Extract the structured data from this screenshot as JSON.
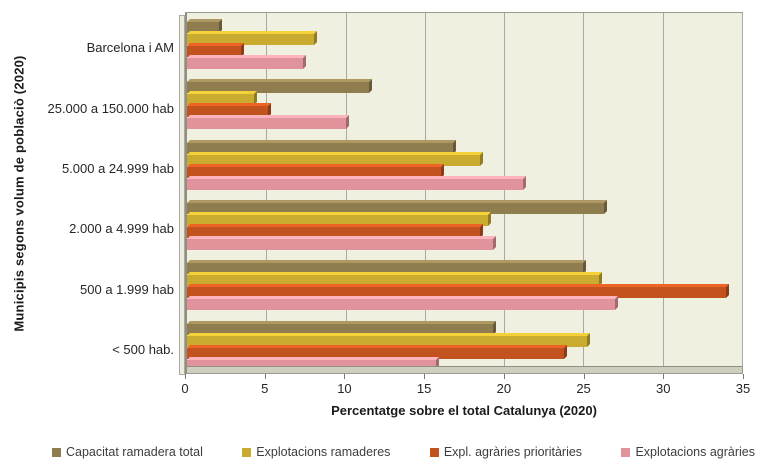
{
  "chart_data": {
    "type": "bar",
    "orientation": "horizontal",
    "xlabel": "Percentatge sobre el total Catalunya  (2020)",
    "ylabel": "Municipis segons volum de poblaciò (2020)",
    "xlim": [
      0,
      35
    ],
    "xticks": [
      0,
      5,
      10,
      15,
      20,
      25,
      30,
      35
    ],
    "grid": true,
    "legend_position": "bottom",
    "categories": [
      "Barcelona i AM",
      "25.000 a 150.000 hab",
      "5.000 a 24.999 hab",
      "2.000 a 4.999 hab",
      "500 a 1.999 hab",
      "< 500 hab."
    ],
    "series": [
      {
        "name": "Capacitat ramadera total",
        "color": "#8F7D50",
        "values": [
          2.0,
          11.5,
          16.8,
          26.3,
          25.0,
          19.3
        ]
      },
      {
        "name": "Explotacions ramaderes",
        "color": "#C9AC2F",
        "values": [
          8.0,
          4.2,
          18.5,
          19.0,
          26.0,
          25.2
        ]
      },
      {
        "name": "Expl. agràries prioritàries",
        "color": "#C2521E",
        "values": [
          3.4,
          5.1,
          16.0,
          18.5,
          34.0,
          23.8
        ]
      },
      {
        "name": "Explotacions agràries",
        "color": "#E0939A",
        "values": [
          7.3,
          10.0,
          21.2,
          19.3,
          27.0,
          15.7
        ]
      }
    ],
    "colors": {
      "plot_bg": "#F0F0E1",
      "gridline": "#A9A9A9",
      "floor": "#CFCFC0",
      "text": "#262626"
    }
  }
}
